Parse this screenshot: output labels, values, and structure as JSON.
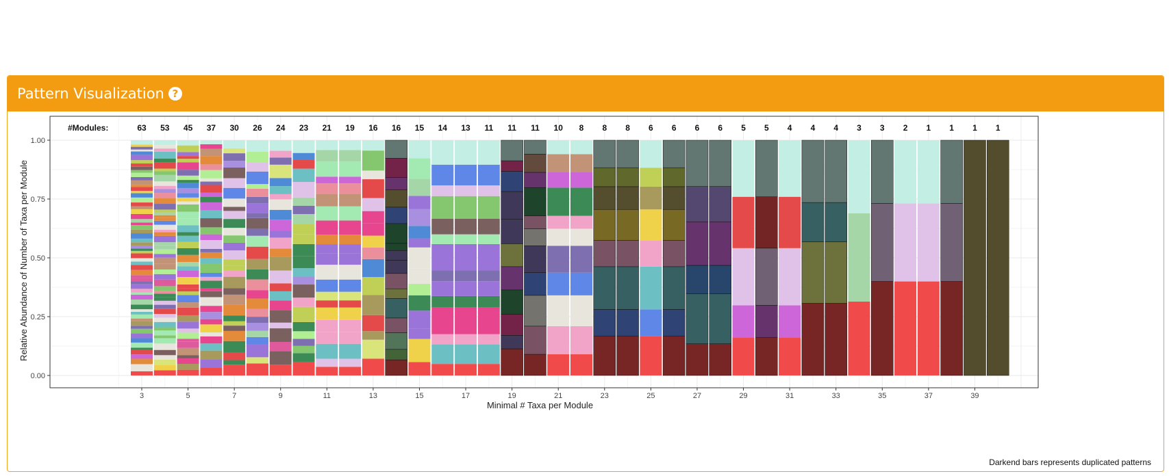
{
  "panel": {
    "title": "Pattern Visualization",
    "help_icon": "question-circle-icon",
    "accent": "#f39c12"
  },
  "note": "Darkend bars represents duplicated patterns",
  "chart_data": {
    "type": "bar",
    "stacked": true,
    "title": "",
    "xlabel": "Minimal # Taxa per Module",
    "ylabel": "Relative Abundance of Number of Taxa per Module",
    "ylim": [
      0,
      1
    ],
    "yticks": [
      "0.00",
      "0.25",
      "0.50",
      "0.75",
      "1.00"
    ],
    "xlim": [
      2,
      41
    ],
    "xticks": [
      3,
      5,
      7,
      9,
      11,
      13,
      15,
      17,
      19,
      21,
      23,
      25,
      27,
      29,
      31,
      33,
      35,
      37,
      39
    ],
    "modules_label": "#Modules:",
    "grid": true,
    "categories": [
      3,
      4,
      5,
      6,
      7,
      8,
      9,
      10,
      11,
      12,
      13,
      14,
      15,
      16,
      17,
      18,
      19,
      20,
      21,
      22,
      23,
      24,
      25,
      26,
      27,
      28,
      29,
      30,
      31,
      32,
      33,
      34,
      35,
      36,
      37,
      38,
      39,
      40
    ],
    "modules": [
      63,
      53,
      45,
      37,
      30,
      26,
      24,
      23,
      21,
      19,
      16,
      16,
      15,
      14,
      13,
      11,
      11,
      11,
      10,
      8,
      8,
      8,
      6,
      6,
      6,
      6,
      5,
      5,
      4,
      4,
      4,
      3,
      3,
      2,
      1,
      1,
      1,
      1
    ],
    "duplicated": [
      false,
      false,
      false,
      false,
      false,
      false,
      false,
      false,
      false,
      false,
      false,
      true,
      false,
      false,
      false,
      false,
      true,
      true,
      false,
      false,
      true,
      true,
      false,
      true,
      true,
      true,
      false,
      true,
      false,
      true,
      true,
      false,
      true,
      false,
      false,
      true,
      true,
      true
    ],
    "bottom_color": "#f04a4a",
    "top_color": "#c3eee4",
    "duplicate_of": {
      "12": 11,
      "17": 16,
      "18": 16,
      "21": 20,
      "22": 20,
      "24": 23,
      "25": 23,
      "26": 23,
      "28": 27,
      "30": 29,
      "31": 29,
      "33": 32,
      "36": 35,
      "37": 35,
      "38": 35
    }
  }
}
